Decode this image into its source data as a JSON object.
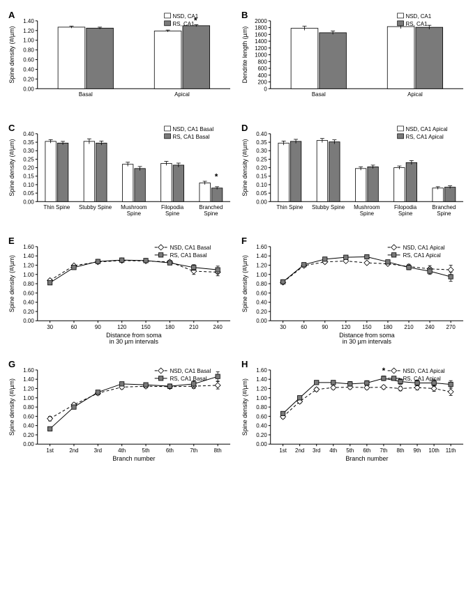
{
  "colors": {
    "nsd_fill": "#ffffff",
    "rs_fill": "#7a7a7a",
    "stroke": "#000000",
    "bg": "#ffffff"
  },
  "panels": {
    "A": {
      "type": "bar",
      "label": "A",
      "ylabel": "Spine density (#/µm)",
      "ylim": [
        0.0,
        1.4
      ],
      "ytick_step": 0.2,
      "categories": [
        "Basal",
        "Apical"
      ],
      "series": [
        {
          "name": "NSD, CA1",
          "values": [
            1.27,
            1.19
          ],
          "err": [
            0.02,
            0.02
          ],
          "fill": "#ffffff"
        },
        {
          "name": "RS, CA1",
          "values": [
            1.25,
            1.3
          ],
          "err": [
            0.02,
            0.02
          ],
          "fill": "#7a7a7a"
        }
      ],
      "stars": [
        {
          "cat": "Apical",
          "y": 1.35
        }
      ]
    },
    "B": {
      "type": "bar",
      "label": "B",
      "ylabel": "Dendrite length (µm)",
      "ylim": [
        0,
        2000
      ],
      "ytick_step": 200,
      "categories": [
        "Basal",
        "Apical"
      ],
      "series": [
        {
          "name": "NSD, CA1",
          "values": [
            1780,
            1830
          ],
          "err": [
            60,
            60
          ],
          "fill": "#ffffff"
        },
        {
          "name": "RS, CA1",
          "values": [
            1650,
            1810
          ],
          "err": [
            50,
            60
          ],
          "fill": "#7a7a7a"
        }
      ],
      "stars": []
    },
    "C": {
      "type": "bar",
      "label": "C",
      "ylabel": "Spine density (#/µm)",
      "ylim": [
        0.0,
        0.4
      ],
      "ytick_step": 0.05,
      "categories": [
        "Thin Spine",
        "Stubby Spine",
        "Mushroom\nSpine",
        "Filopodia\nSpine",
        "Branched\nSpine"
      ],
      "series": [
        {
          "name": "NSD, CA1 Basal",
          "values": [
            0.355,
            0.355,
            0.22,
            0.225,
            0.11
          ],
          "err": [
            0.01,
            0.015,
            0.012,
            0.012,
            0.01
          ],
          "fill": "#ffffff"
        },
        {
          "name": "RS, CA1 Basal",
          "values": [
            0.345,
            0.345,
            0.195,
            0.215,
            0.08
          ],
          "err": [
            0.01,
            0.012,
            0.012,
            0.012,
            0.008
          ],
          "fill": "#7a7a7a"
        }
      ],
      "stars": [
        {
          "cat": "Branched\nSpine",
          "y": 0.13
        }
      ]
    },
    "D": {
      "type": "bar",
      "label": "D",
      "ylabel": "Spine density (#/µm)",
      "ylim": [
        0.0,
        0.4
      ],
      "ytick_step": 0.05,
      "categories": [
        "Thin Spine",
        "Stubby Spine",
        "Mushroom\nSpine",
        "Filopodia\nSpine",
        "Branched\nSpine"
      ],
      "series": [
        {
          "name": "NSD, CA1 Apical",
          "values": [
            0.345,
            0.36,
            0.195,
            0.2,
            0.08
          ],
          "err": [
            0.012,
            0.012,
            0.01,
            0.01,
            0.008
          ],
          "fill": "#ffffff"
        },
        {
          "name": "RS, CA1 Apical",
          "values": [
            0.355,
            0.352,
            0.205,
            0.23,
            0.085
          ],
          "err": [
            0.012,
            0.012,
            0.01,
            0.012,
            0.008
          ],
          "fill": "#7a7a7a"
        }
      ],
      "stars": []
    },
    "E": {
      "type": "line",
      "label": "E",
      "ylabel": "Spine density (#/µm)",
      "xlabel": "Distance from soma\nin 30 µm intervals",
      "ylim": [
        0.0,
        1.6
      ],
      "ytick_step": 0.2,
      "x": [
        30,
        60,
        90,
        120,
        150,
        180,
        210,
        240
      ],
      "series": [
        {
          "name": "NSD, CA1 Basal",
          "marker": "diamond",
          "dash": "4,3",
          "fill": "#ffffff",
          "values": [
            0.87,
            1.19,
            1.27,
            1.3,
            1.29,
            1.27,
            1.07,
            1.05
          ],
          "err": [
            0.03,
            0.03,
            0.03,
            0.03,
            0.03,
            0.03,
            0.07,
            0.08
          ]
        },
        {
          "name": "RS, CA1 Basal",
          "marker": "square",
          "dash": "",
          "fill": "#7a7a7a",
          "values": [
            0.82,
            1.15,
            1.28,
            1.31,
            1.3,
            1.25,
            1.15,
            1.1
          ],
          "err": [
            0.03,
            0.03,
            0.03,
            0.03,
            0.03,
            0.03,
            0.06,
            0.08
          ]
        }
      ],
      "stars": []
    },
    "F": {
      "type": "line",
      "label": "F",
      "ylabel": "Spine density (#/µm)",
      "xlabel": "Distance from soma\nin 30 µm intervals",
      "ylim": [
        0.0,
        1.6
      ],
      "ytick_step": 0.2,
      "x": [
        30,
        60,
        90,
        120,
        150,
        180,
        210,
        240,
        270
      ],
      "series": [
        {
          "name": "NSD, CA1 Apical",
          "marker": "diamond",
          "dash": "4,3",
          "fill": "#ffffff",
          "values": [
            0.83,
            1.19,
            1.27,
            1.29,
            1.25,
            1.23,
            1.17,
            1.12,
            1.1
          ],
          "err": [
            0.03,
            0.03,
            0.03,
            0.03,
            0.03,
            0.03,
            0.05,
            0.07,
            0.1
          ]
        },
        {
          "name": "RS, CA1 Apical",
          "marker": "square",
          "dash": "",
          "fill": "#7a7a7a",
          "values": [
            0.84,
            1.21,
            1.33,
            1.37,
            1.38,
            1.27,
            1.15,
            1.07,
            0.95
          ],
          "err": [
            0.03,
            0.03,
            0.03,
            0.03,
            0.03,
            0.03,
            0.05,
            0.07,
            0.1
          ]
        }
      ],
      "stars": []
    },
    "G": {
      "type": "line",
      "label": "G",
      "ylabel": "Spine density (#/µm)",
      "xlabel": "Branch number",
      "ylim": [
        0.0,
        1.6
      ],
      "ytick_step": 0.2,
      "x_labels": [
        "1st",
        "2nd",
        "3rd",
        "4th",
        "5th",
        "6th",
        "7th",
        "8th"
      ],
      "series": [
        {
          "name": "NSD, CA1 Basal",
          "marker": "diamond",
          "dash": "4,3",
          "fill": "#ffffff",
          "values": [
            0.55,
            0.85,
            1.1,
            1.23,
            1.25,
            1.24,
            1.25,
            1.27
          ],
          "err": [
            0.05,
            0.04,
            0.04,
            0.04,
            0.04,
            0.04,
            0.05,
            0.08
          ]
        },
        {
          "name": "RS, CA1 Basal",
          "marker": "square",
          "dash": "",
          "fill": "#7a7a7a",
          "values": [
            0.33,
            0.8,
            1.12,
            1.3,
            1.28,
            1.25,
            1.3,
            1.46
          ],
          "err": [
            0.04,
            0.04,
            0.04,
            0.04,
            0.04,
            0.05,
            0.07,
            0.1
          ]
        }
      ],
      "stars": []
    },
    "H": {
      "type": "line",
      "label": "H",
      "ylabel": "Spine density (#/µm)",
      "xlabel": "Branch number",
      "ylim": [
        0.0,
        1.6
      ],
      "ytick_step": 0.2,
      "x_labels": [
        "1st",
        "2nd",
        "3rd",
        "4th",
        "5th",
        "6th",
        "7th",
        "8th",
        "9th",
        "10th",
        "11th"
      ],
      "series": [
        {
          "name": "NSD, CA1 Apical",
          "marker": "diamond",
          "dash": "4,3",
          "fill": "#ffffff",
          "values": [
            0.59,
            0.92,
            1.18,
            1.22,
            1.23,
            1.22,
            1.23,
            1.2,
            1.22,
            1.2,
            1.13
          ],
          "err": [
            0.04,
            0.04,
            0.04,
            0.04,
            0.04,
            0.04,
            0.04,
            0.05,
            0.05,
            0.06,
            0.08
          ]
        },
        {
          "name": "RS, CA1 Apical",
          "marker": "square",
          "dash": "",
          "fill": "#7a7a7a",
          "values": [
            0.66,
            1.0,
            1.33,
            1.33,
            1.3,
            1.32,
            1.42,
            1.35,
            1.32,
            1.32,
            1.29
          ],
          "err": [
            0.04,
            0.04,
            0.04,
            0.04,
            0.05,
            0.05,
            0.05,
            0.06,
            0.06,
            0.07,
            0.08
          ]
        }
      ],
      "stars": [
        {
          "xi": 6,
          "y": 1.52
        }
      ]
    }
  }
}
